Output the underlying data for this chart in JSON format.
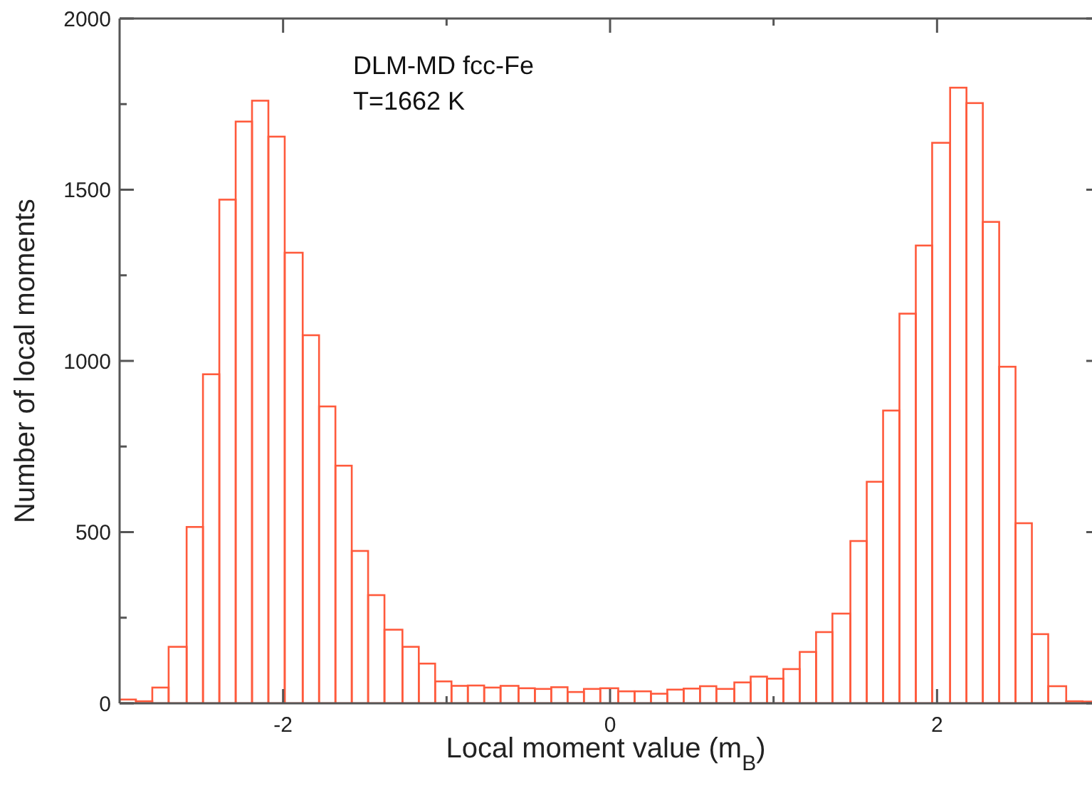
{
  "chart_data": {
    "type": "histogram",
    "xlabel": "Local moment value (m$_{B}$)",
    "ylabel": "Number of local moments",
    "annotations": [
      "DLM-MD fcc-Fe",
      "T=1662 K"
    ],
    "color": "#ff5a3c",
    "bins": [
      -3,
      -2.9,
      -2.8,
      -2.7,
      -2.59,
      -2.49,
      -2.39,
      -2.29,
      -2.19,
      -2.09,
      -1.99,
      -1.88,
      -1.78,
      -1.68,
      -1.58,
      -1.48,
      -1.38,
      -1.27,
      -1.17,
      -1.07,
      -0.97,
      -0.87,
      -0.77,
      -0.67,
      -0.56,
      -0.46,
      -0.36,
      -0.26,
      -0.16,
      -0.06,
      0.05,
      0.15,
      0.25,
      0.35,
      0.45,
      0.55,
      0.65,
      0.76,
      0.86,
      0.96,
      1.06,
      1.16,
      1.26,
      1.36,
      1.47,
      1.57,
      1.67,
      1.77,
      1.87,
      1.97,
      2.08,
      2.18,
      2.28,
      2.38,
      2.48,
      2.58,
      2.68,
      2.79,
      2.89,
      2.99
    ],
    "values": [
      11,
      6,
      46,
      165,
      515,
      961,
      1471,
      1699,
      1760,
      1655,
      1316,
      1075,
      867,
      694,
      445,
      316,
      215,
      165,
      116,
      64,
      51,
      52,
      46,
      51,
      44,
      42,
      47,
      33,
      42,
      44,
      35,
      35,
      28,
      40,
      43,
      50,
      42,
      61,
      78,
      72,
      100,
      150,
      208,
      262,
      474,
      647,
      855,
      1138,
      1337,
      1637,
      1798,
      1753,
      1406,
      983,
      526,
      202,
      50,
      6,
      5
    ],
    "xlim": [
      -3,
      3
    ],
    "xticks": [
      {
        "value": -2,
        "label": "-2"
      },
      {
        "value": -1,
        "label": null
      },
      0,
      {
        "value": 1,
        "label": null
      },
      2
    ],
    "ylim": [
      0,
      2000
    ],
    "yticks": [
      0,
      {
        "value": 250,
        "label": null
      },
      500,
      {
        "value": 750,
        "label": null
      },
      1000,
      {
        "value": 1250,
        "label": null
      },
      1500,
      {
        "value": 1750,
        "label": null
      },
      2000
    ],
    "grid": false
  }
}
